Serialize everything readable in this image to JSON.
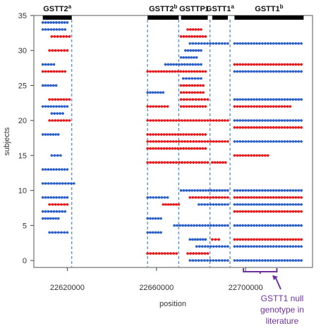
{
  "chart_data": {
    "type": "scatter",
    "xlabel": "position",
    "ylabel": "subjects",
    "xlim": [
      22605000,
      22730000
    ],
    "ylim": [
      -1,
      35
    ],
    "x_ticks": [
      22620000,
      22660000,
      22700000
    ],
    "x_tick_labels": [
      "22620000",
      "22660000",
      "22700000"
    ],
    "y_ticks": [
      0,
      5,
      10,
      15,
      20,
      25,
      30,
      35
    ],
    "y_tick_labels": [
      "0",
      "5",
      "10",
      "15",
      "20",
      "25",
      "30",
      "35"
    ],
    "colors": {
      "blue": "#2a5fc9",
      "red": "#e8171a",
      "purple": "#7030a0",
      "dashed_line": "#4a86c8"
    },
    "gene_bars": [
      {
        "start": 22609000,
        "end": 22622000,
        "name": "GSTT2",
        "sup": "a"
      },
      {
        "start": 22656000,
        "end": 22670000,
        "name": "GSTT2",
        "sup": "b"
      },
      {
        "start": 22671000,
        "end": 22683000,
        "name": "GSTTP1",
        "sup": ""
      },
      {
        "start": 22685000,
        "end": 22692000,
        "name": "GSTT1",
        "sup": "a"
      },
      {
        "start": 22695000,
        "end": 22726000,
        "name": "GSTT1",
        "sup": "b"
      }
    ],
    "dashed_lines": [
      22622000,
      22656000,
      22670000,
      22684000,
      22693000
    ],
    "segments": [
      {
        "y": 34,
        "start": 22609000,
        "end": 22620000,
        "color": "blue"
      },
      {
        "y": 33,
        "start": 22609000,
        "end": 22619000,
        "color": "blue"
      },
      {
        "y": 32,
        "start": 22613000,
        "end": 22621000,
        "color": "red"
      },
      {
        "y": 30,
        "start": 22612000,
        "end": 22620000,
        "color": "red"
      },
      {
        "y": 28,
        "start": 22609000,
        "end": 22614000,
        "color": "blue"
      },
      {
        "y": 27,
        "start": 22609000,
        "end": 22619000,
        "color": "red"
      },
      {
        "y": 25,
        "start": 22609000,
        "end": 22615000,
        "color": "blue"
      },
      {
        "y": 23,
        "start": 22612000,
        "end": 22621000,
        "color": "red"
      },
      {
        "y": 22,
        "start": 22609000,
        "end": 22620000,
        "color": "blue"
      },
      {
        "y": 21,
        "start": 22613000,
        "end": 22618000,
        "color": "blue"
      },
      {
        "y": 20,
        "start": 22612000,
        "end": 22621000,
        "color": "red"
      },
      {
        "y": 18,
        "start": 22609000,
        "end": 22616000,
        "color": "blue"
      },
      {
        "y": 15,
        "start": 22613000,
        "end": 22617000,
        "color": "blue"
      },
      {
        "y": 13,
        "start": 22609000,
        "end": 22620000,
        "color": "blue"
      },
      {
        "y": 11,
        "start": 22609000,
        "end": 22623000,
        "color": "blue"
      },
      {
        "y": 9,
        "start": 22609000,
        "end": 22620000,
        "color": "blue"
      },
      {
        "y": 8,
        "start": 22612000,
        "end": 22620000,
        "color": "red"
      },
      {
        "y": 7,
        "start": 22609000,
        "end": 22619000,
        "color": "blue"
      },
      {
        "y": 6,
        "start": 22609000,
        "end": 22616000,
        "color": "blue"
      },
      {
        "y": 4,
        "start": 22612000,
        "end": 22620000,
        "color": "blue"
      },
      {
        "y": 33,
        "start": 22674000,
        "end": 22680000,
        "color": "red"
      },
      {
        "y": 32,
        "start": 22671000,
        "end": 22682000,
        "color": "red"
      },
      {
        "y": 31,
        "start": 22675000,
        "end": 22692000,
        "color": "blue"
      },
      {
        "y": 31,
        "start": 22695000,
        "end": 22725000,
        "color": "blue"
      },
      {
        "y": 30,
        "start": 22673000,
        "end": 22680000,
        "color": "blue"
      },
      {
        "y": 29,
        "start": 22671000,
        "end": 22678000,
        "color": "blue"
      },
      {
        "y": 28,
        "start": 22664000,
        "end": 22680000,
        "color": "blue"
      },
      {
        "y": 28,
        "start": 22695000,
        "end": 22725000,
        "color": "red"
      },
      {
        "y": 27,
        "start": 22656000,
        "end": 22682000,
        "color": "red"
      },
      {
        "y": 27,
        "start": 22695000,
        "end": 22725000,
        "color": "blue"
      },
      {
        "y": 26,
        "start": 22672000,
        "end": 22680000,
        "color": "blue"
      },
      {
        "y": 25,
        "start": 22671000,
        "end": 22681000,
        "color": "red"
      },
      {
        "y": 24,
        "start": 22656000,
        "end": 22663000,
        "color": "blue"
      },
      {
        "y": 24,
        "start": 22671000,
        "end": 22681000,
        "color": "red"
      },
      {
        "y": 23,
        "start": 22671000,
        "end": 22683000,
        "color": "red"
      },
      {
        "y": 23,
        "start": 22695000,
        "end": 22725000,
        "color": "blue"
      },
      {
        "y": 22,
        "start": 22656000,
        "end": 22665000,
        "color": "red"
      },
      {
        "y": 22,
        "start": 22671000,
        "end": 22682000,
        "color": "red"
      },
      {
        "y": 22,
        "start": 22695000,
        "end": 22720000,
        "color": "red"
      },
      {
        "y": 20,
        "start": 22656000,
        "end": 22692000,
        "color": "red"
      },
      {
        "y": 20,
        "start": 22695000,
        "end": 22725000,
        "color": "blue"
      },
      {
        "y": 19,
        "start": 22695000,
        "end": 22725000,
        "color": "red"
      },
      {
        "y": 18,
        "start": 22656000,
        "end": 22682000,
        "color": "red"
      },
      {
        "y": 17,
        "start": 22656000,
        "end": 22692000,
        "color": "red"
      },
      {
        "y": 17,
        "start": 22695000,
        "end": 22725000,
        "color": "blue"
      },
      {
        "y": 16,
        "start": 22656000,
        "end": 22682000,
        "color": "red"
      },
      {
        "y": 15,
        "start": 22695000,
        "end": 22710000,
        "color": "red"
      },
      {
        "y": 14,
        "start": 22656000,
        "end": 22683000,
        "color": "red"
      },
      {
        "y": 14,
        "start": 22685000,
        "end": 22691000,
        "color": "red"
      },
      {
        "y": 10,
        "start": 22671000,
        "end": 22692000,
        "color": "blue"
      },
      {
        "y": 10,
        "start": 22695000,
        "end": 22725000,
        "color": "blue"
      },
      {
        "y": 9,
        "start": 22656000,
        "end": 22665000,
        "color": "blue"
      },
      {
        "y": 9,
        "start": 22675000,
        "end": 22692000,
        "color": "red"
      },
      {
        "y": 9,
        "start": 22695000,
        "end": 22725000,
        "color": "red"
      },
      {
        "y": 8,
        "start": 22663000,
        "end": 22670000,
        "color": "red"
      },
      {
        "y": 8,
        "start": 22679000,
        "end": 22692000,
        "color": "blue"
      },
      {
        "y": 8,
        "start": 22695000,
        "end": 22725000,
        "color": "blue"
      },
      {
        "y": 7,
        "start": 22695000,
        "end": 22725000,
        "color": "red"
      },
      {
        "y": 6,
        "start": 22656000,
        "end": 22662000,
        "color": "blue"
      },
      {
        "y": 5,
        "start": 22668000,
        "end": 22692000,
        "color": "blue"
      },
      {
        "y": 5,
        "start": 22695000,
        "end": 22725000,
        "color": "blue"
      },
      {
        "y": 4,
        "start": 22656000,
        "end": 22662000,
        "color": "blue"
      },
      {
        "y": 3,
        "start": 22675000,
        "end": 22682000,
        "color": "blue"
      },
      {
        "y": 3,
        "start": 22685000,
        "end": 22688000,
        "color": "red"
      },
      {
        "y": 3,
        "start": 22695000,
        "end": 22725000,
        "color": "red"
      },
      {
        "y": 2,
        "start": 22678000,
        "end": 22692000,
        "color": "blue"
      },
      {
        "y": 2,
        "start": 22695000,
        "end": 22725000,
        "color": "blue"
      },
      {
        "y": 1,
        "start": 22656000,
        "end": 22669000,
        "color": "red"
      },
      {
        "y": 1,
        "start": 22674000,
        "end": 22683000,
        "color": "red"
      },
      {
        "y": 0,
        "start": 22675000,
        "end": 22692000,
        "color": "blue"
      },
      {
        "y": 0,
        "start": 22695000,
        "end": 22725000,
        "color": "blue"
      }
    ],
    "annotation": {
      "lines": [
        "GSTT1 null",
        "genotype in",
        "literature"
      ],
      "bracket_start": 22699000,
      "bracket_end": 22714000
    }
  }
}
